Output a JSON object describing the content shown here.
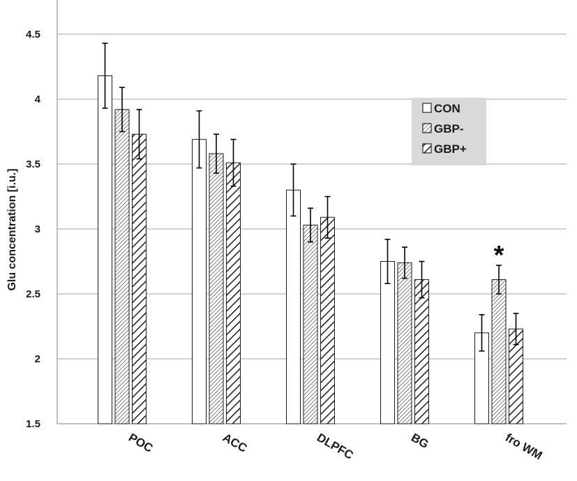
{
  "chart_data": {
    "type": "bar",
    "title": "",
    "xlabel": "",
    "ylabel": "Glu concentration [i.u.]",
    "ylim": [
      1.5,
      4.75
    ],
    "yticks": [
      1.5,
      2,
      2.5,
      3,
      3.5,
      4,
      4.5
    ],
    "ytick_labels": [
      "1.5",
      "2",
      "2.5",
      "3",
      "3.5",
      "4",
      "4.5"
    ],
    "grid": true,
    "legend_position": "top-right",
    "categories": [
      "POC",
      "ACC",
      "DLPFC",
      "BG",
      "fro WM"
    ],
    "series": [
      {
        "name": "CON",
        "pattern": "white",
        "values": [
          4.18,
          3.69,
          3.3,
          2.75,
          2.2
        ],
        "errors": [
          0.25,
          0.22,
          0.2,
          0.17,
          0.14
        ]
      },
      {
        "name": "GBP-",
        "pattern": "fine-hatch",
        "values": [
          3.92,
          3.58,
          3.03,
          2.74,
          2.61
        ],
        "errors": [
          0.17,
          0.15,
          0.13,
          0.12,
          0.11
        ]
      },
      {
        "name": "GBP+",
        "pattern": "coarse-hatch",
        "values": [
          3.73,
          3.51,
          3.09,
          2.61,
          2.23
        ],
        "errors": [
          0.19,
          0.18,
          0.16,
          0.14,
          0.12
        ]
      }
    ],
    "annotations": [
      {
        "text": "*",
        "category": "fro WM",
        "series": "GBP-"
      }
    ]
  },
  "colors": {
    "bar_stroke": "#1a1a1a",
    "grid": "#a6a6a6",
    "legend_bg": "#d9d9d9",
    "hatch": "#1a1a1a"
  }
}
